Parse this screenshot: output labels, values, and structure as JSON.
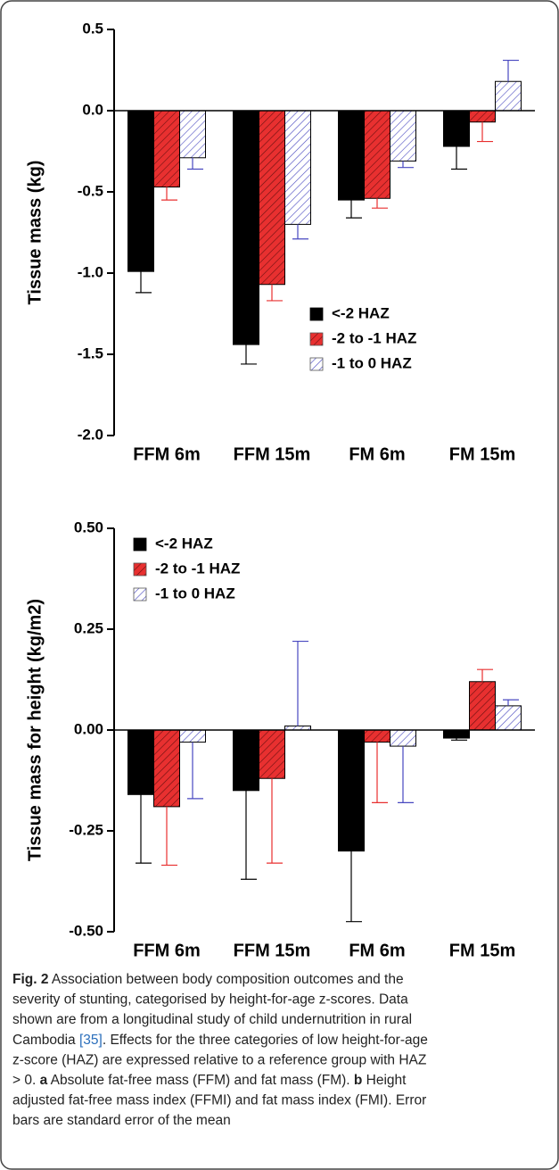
{
  "chart_data": [
    {
      "type": "bar",
      "ylabel": "Tissue mass (kg)",
      "categories": [
        "FFM 6m",
        "FFM 15m",
        "FM 6m",
        "FM 15m"
      ],
      "series": [
        {
          "name": "<-2 HAZ",
          "color": "#000000",
          "hatch": "none",
          "values": [
            -0.99,
            -1.44,
            -0.55,
            -0.22
          ],
          "errors": [
            0.13,
            0.12,
            0.11,
            0.14
          ]
        },
        {
          "name": "-2 to -1 HAZ",
          "color": "#e83030",
          "hatch": "filled",
          "values": [
            -0.47,
            -1.07,
            -0.54,
            -0.07
          ],
          "errors": [
            0.08,
            0.1,
            0.06,
            0.12
          ]
        },
        {
          "name": "-1 to 0 HAZ",
          "color": "#4848c0",
          "hatch": "open",
          "values": [
            -0.29,
            -0.7,
            -0.31,
            0.18
          ],
          "errors": [
            0.07,
            0.09,
            0.04,
            0.13
          ]
        }
      ],
      "ylim": [
        -2.0,
        0.5
      ],
      "yticks": [
        {
          "value": -2.0,
          "label": "-2.0"
        },
        -1.5,
        {
          "value": -1.0,
          "label": "-1.0"
        },
        -0.5,
        {
          "value": 0.0,
          "label": "0.0"
        },
        0.5
      ],
      "legend": "lower right"
    },
    {
      "type": "bar",
      "ylabel": "Tissue mass for height (kg/m2)",
      "categories": [
        "FFM 6m",
        "FFM 15m",
        "FM 6m",
        "FM 15m"
      ],
      "series": [
        {
          "name": "<-2 HAZ",
          "color": "#000000",
          "hatch": "none",
          "values": [
            -0.16,
            -0.15,
            -0.3,
            -0.02
          ],
          "errors": [
            0.17,
            0.22,
            0.175,
            0.005
          ]
        },
        {
          "name": "-2 to -1 HAZ",
          "color": "#e83030",
          "hatch": "filled",
          "values": [
            -0.19,
            -0.12,
            -0.03,
            0.12
          ],
          "errors": [
            0.145,
            0.21,
            0.15,
            0.03
          ]
        },
        {
          "name": "-1 to 0 HAZ",
          "color": "#4848c0",
          "hatch": "open",
          "values": [
            -0.03,
            0.01,
            -0.04,
            0.06
          ],
          "errors": [
            0.14,
            0.21,
            0.14,
            0.015
          ]
        }
      ],
      "ylim": [
        -0.5,
        0.5
      ],
      "yticks": [
        {
          "value": -0.5,
          "label": "-0.50"
        },
        {
          "value": -0.25,
          "label": "-0.25"
        },
        {
          "value": 0.0,
          "label": "0.00"
        },
        {
          "value": 0.25,
          "label": "0.25"
        },
        {
          "value": 0.5,
          "label": "0.50"
        }
      ],
      "legend": "upper left"
    }
  ],
  "caption": {
    "lines": [
      [
        {
          "text": "Fig. 2",
          "bold": true
        },
        {
          "text": " Association between body composition outcomes and the"
        }
      ],
      [
        {
          "text": "severity of stunting, categorised by height-for-age z-scores. Data"
        }
      ],
      [
        {
          "text": "shown are from a longitudinal study of child undernutrition in rural"
        }
      ],
      [
        {
          "text": "Cambodia "
        },
        {
          "text": "[35]",
          "link": true
        },
        {
          "text": ". Effects for the three categories of low height-for-age"
        }
      ],
      [
        {
          "text": "z-score (HAZ) are expressed relative to a reference group with HAZ"
        }
      ],
      [
        {
          "text": "> 0. "
        },
        {
          "text": "a",
          "bold": true
        },
        {
          "text": " Absolute fat-free mass (FFM) and fat mass (FM). "
        },
        {
          "text": "b",
          "bold": true
        },
        {
          "text": " Height"
        }
      ],
      [
        {
          "text": "adjusted fat-free mass index (FFMI) and fat mass index (FMI). Error"
        }
      ],
      [
        {
          "text": "bars are standard error of the mean"
        }
      ]
    ]
  }
}
